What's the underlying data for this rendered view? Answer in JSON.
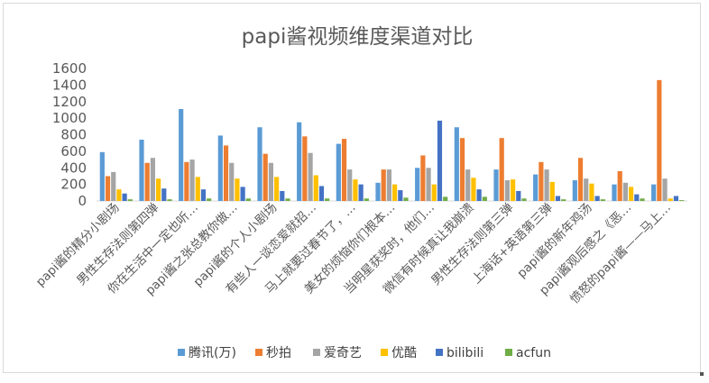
{
  "chart_data": {
    "type": "bar",
    "title": "papi酱视频维度渠道对比",
    "categories": [
      "papi酱的精分小剧场",
      "男性生存法则第四弹",
      "你在生活中一定也听…",
      "papi酱之张总教你做…",
      "papi酱的个人小剧场",
      "有些人一谈恋爱就招…",
      "马上就要过春节了，…",
      "美女的烦恼你们根本…",
      "当明星获奖时，他们…",
      "微信有时候真让我崩溃",
      "男性生存法则第三弹",
      "上海话+英语第三弹",
      "papi酱的新年鸡汤",
      "papi酱观后感之《恶…",
      "愤怒的papi酱——马上…"
    ],
    "series": [
      {
        "name": "腾讯(万)",
        "color": "#5b9bd5",
        "values": [
          590,
          740,
          1110,
          790,
          890,
          950,
          690,
          220,
          400,
          890,
          380,
          320,
          250,
          200,
          200
        ]
      },
      {
        "name": "秒拍",
        "color": "#ed7d31",
        "values": [
          300,
          460,
          470,
          670,
          570,
          780,
          750,
          380,
          550,
          760,
          760,
          470,
          520,
          360,
          1460
        ]
      },
      {
        "name": "爱奇艺",
        "color": "#a5a5a5",
        "values": [
          350,
          520,
          500,
          460,
          460,
          580,
          380,
          380,
          400,
          380,
          250,
          380,
          270,
          220,
          270
        ]
      },
      {
        "name": "优酷",
        "color": "#ffc000",
        "values": [
          140,
          270,
          290,
          270,
          290,
          310,
          260,
          200,
          200,
          280,
          260,
          230,
          210,
          170,
          30
        ]
      },
      {
        "name": "bilibili",
        "color": "#4472c4",
        "values": [
          90,
          150,
          140,
          170,
          120,
          180,
          200,
          130,
          970,
          140,
          120,
          60,
          60,
          80,
          60
        ]
      },
      {
        "name": "acfun",
        "color": "#70ad47",
        "values": [
          20,
          20,
          30,
          30,
          30,
          30,
          30,
          40,
          50,
          50,
          30,
          20,
          20,
          30,
          10
        ]
      }
    ],
    "ylim": [
      0,
      1600
    ],
    "yticks": [
      0,
      200,
      400,
      600,
      800,
      1000,
      1200,
      1400,
      1600
    ],
    "grid": false,
    "legend": "bottom"
  }
}
